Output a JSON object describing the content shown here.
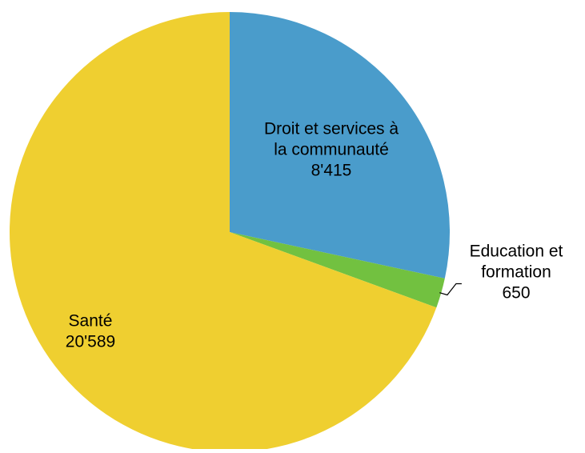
{
  "chart_data": {
    "type": "pie",
    "title": "",
    "slices": [
      {
        "label_lines": [
          "Droit et services à",
          "la communauté"
        ],
        "value": 8415,
        "value_label": "8'415",
        "color": "#4a9ccb"
      },
      {
        "label_lines": [
          "Education et",
          "formation"
        ],
        "value": 650,
        "value_label": "650",
        "color": "#72c140"
      },
      {
        "label_lines": [
          "Santé"
        ],
        "value": 20589,
        "value_label": "20'589",
        "color": "#efcf30"
      }
    ],
    "start_angle_deg": 0,
    "direction": "clockwise",
    "legend": "none"
  }
}
